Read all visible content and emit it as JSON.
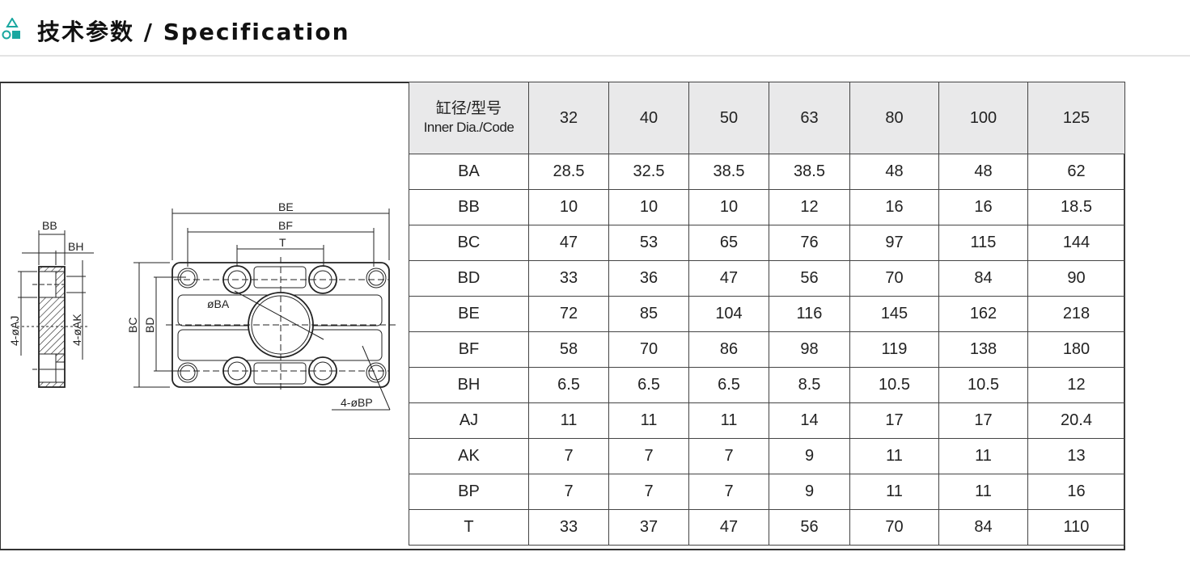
{
  "header": {
    "title": "技术参数 / Specification",
    "icon": "shapes-icon",
    "accent": "#1aa7a0"
  },
  "diagram": {
    "labels": {
      "BB": "BB",
      "BH": "BH",
      "AJ": "4-øAJ",
      "AK": "4-øAK",
      "BE": "BE",
      "BF": "BF",
      "T": "T",
      "BC": "BC",
      "BD": "BD",
      "BA": "øBA",
      "BP": "4-øBP"
    }
  },
  "table": {
    "header_cn": "缸径/型号",
    "header_en": "Inner Dia./Code",
    "columns": [
      "32",
      "40",
      "50",
      "63",
      "80",
      "100",
      "125"
    ],
    "rows": [
      {
        "label": "BA",
        "values": [
          "28.5",
          "32.5",
          "38.5",
          "38.5",
          "48",
          "48",
          "62"
        ]
      },
      {
        "label": "BB",
        "values": [
          "10",
          "10",
          "10",
          "12",
          "16",
          "16",
          "18.5"
        ]
      },
      {
        "label": "BC",
        "values": [
          "47",
          "53",
          "65",
          "76",
          "97",
          "115",
          "144"
        ]
      },
      {
        "label": "BD",
        "values": [
          "33",
          "36",
          "47",
          "56",
          "70",
          "84",
          "90"
        ]
      },
      {
        "label": "BE",
        "values": [
          "72",
          "85",
          "104",
          "116",
          "145",
          "162",
          "218"
        ]
      },
      {
        "label": "BF",
        "values": [
          "58",
          "70",
          "86",
          "98",
          "119",
          "138",
          "180"
        ]
      },
      {
        "label": "BH",
        "values": [
          "6.5",
          "6.5",
          "6.5",
          "8.5",
          "10.5",
          "10.5",
          "12"
        ]
      },
      {
        "label": "AJ",
        "values": [
          "11",
          "11",
          "11",
          "14",
          "17",
          "17",
          "20.4"
        ]
      },
      {
        "label": "AK",
        "values": [
          "7",
          "7",
          "7",
          "9",
          "11",
          "11",
          "13"
        ]
      },
      {
        "label": "BP",
        "values": [
          "7",
          "7",
          "7",
          "9",
          "11",
          "11",
          "16"
        ]
      },
      {
        "label": "T",
        "values": [
          "33",
          "37",
          "47",
          "56",
          "70",
          "84",
          "110"
        ]
      }
    ]
  }
}
